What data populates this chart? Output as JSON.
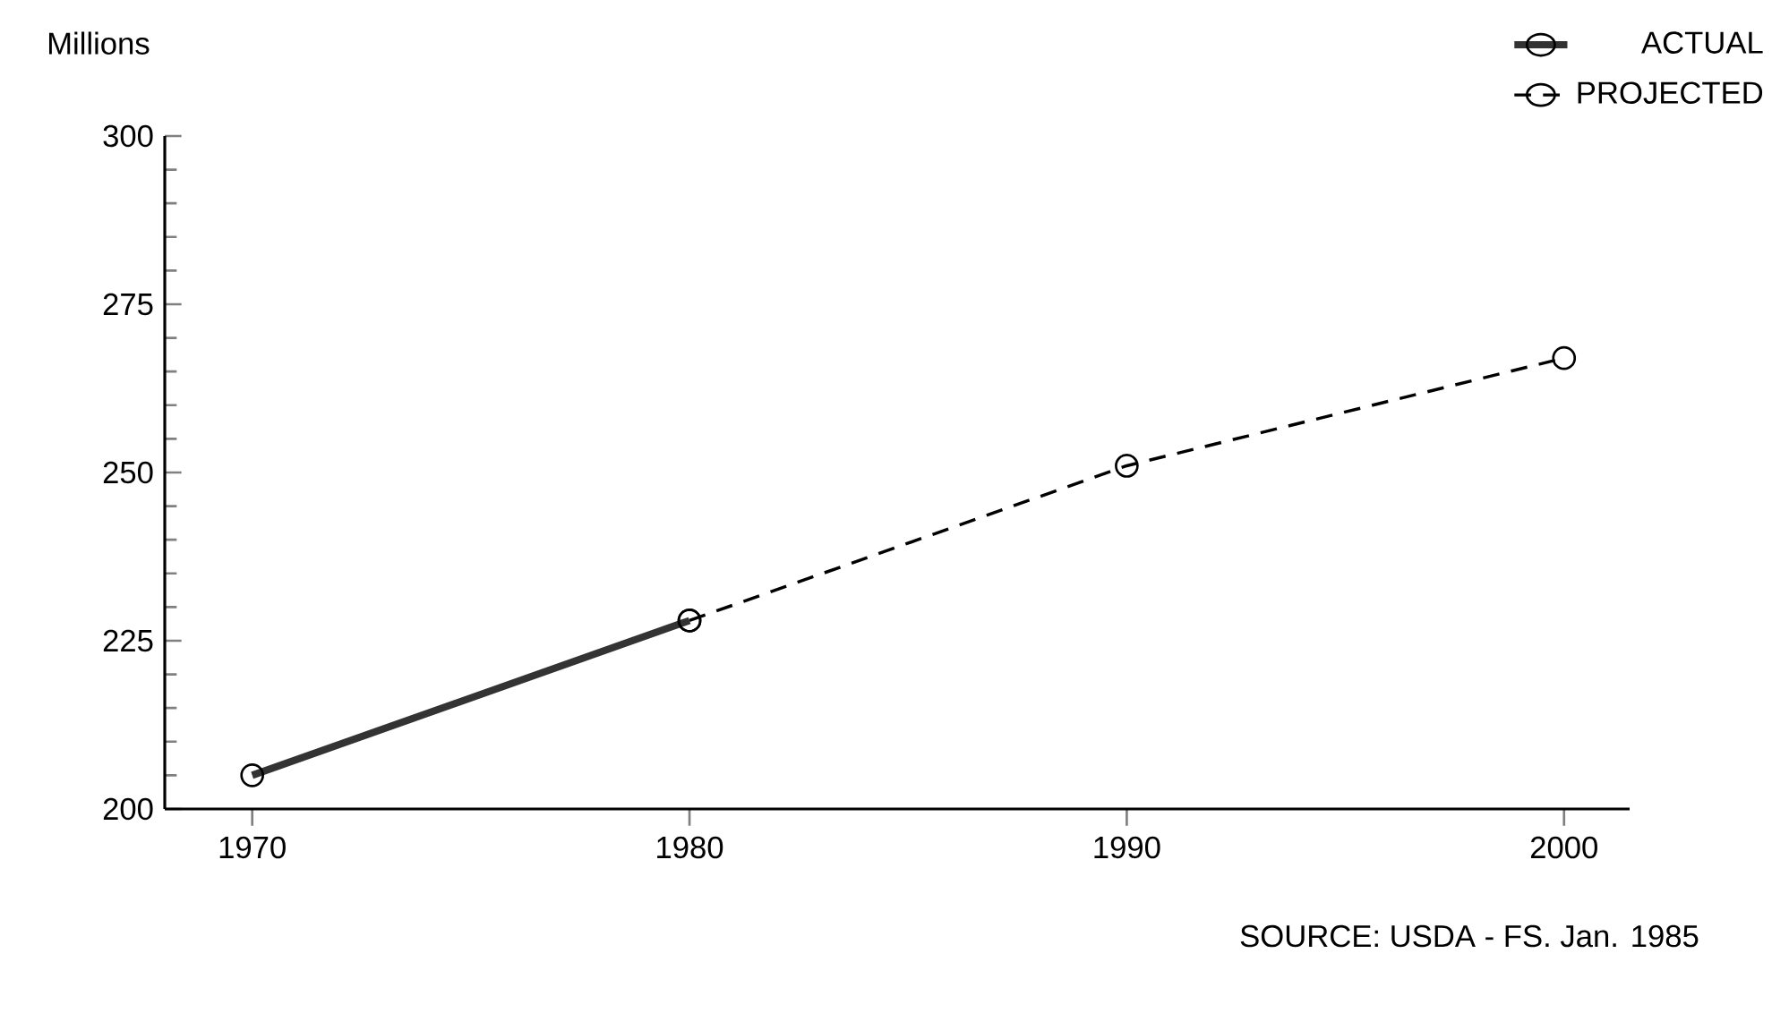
{
  "chart_data": {
    "type": "line",
    "ylabel": "Millions",
    "annotations": [
      "SOURCE: USDA - FS. Jan. 1985"
    ],
    "xlim": [
      1968,
      2001.5
    ],
    "xticks": [
      1970,
      1980,
      1990,
      2000
    ],
    "ylim": [
      200,
      300
    ],
    "yticks": [
      200,
      225,
      250,
      275,
      300
    ],
    "marker": "circle",
    "legend": "top right",
    "series": [
      {
        "name": "ACTUAL",
        "color": "#333333",
        "x": [
          1970,
          1980
        ],
        "values": [
          205,
          228
        ],
        "line_style": "solid"
      },
      {
        "name": "PROJECTED",
        "color": "#000000",
        "x": [
          1980,
          1990,
          2000
        ],
        "values": [
          228,
          251,
          267
        ],
        "line_style": "dashed"
      }
    ]
  }
}
